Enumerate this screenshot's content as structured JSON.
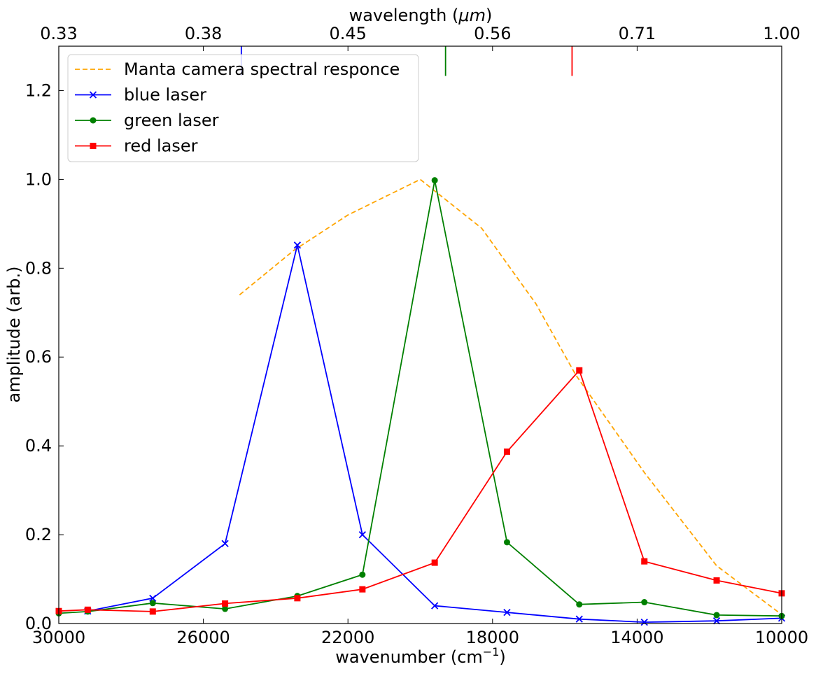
{
  "chart_data": {
    "type": "line",
    "xlabel": "wavenumber (cm",
    "xlabel_sup": "−1",
    "xlabel_end": ")",
    "ylabel": "amplitude (arb.)",
    "top_xlabel": "wavelength (",
    "top_xlabel_unit": "μm",
    "top_xlabel_end": ")",
    "xlim": [
      30000,
      10000
    ],
    "ylim": [
      0,
      1.3
    ],
    "x_ticks": [
      30000,
      26000,
      22000,
      18000,
      14000,
      10000
    ],
    "x_tick_labels": [
      "30000",
      "26000",
      "22000",
      "18000",
      "14000",
      "10000"
    ],
    "y_ticks": [
      0,
      0.2,
      0.4,
      0.6,
      0.8,
      1.0,
      1.2
    ],
    "y_tick_labels": [
      "0.0",
      "0.2",
      "0.4",
      "0.6",
      "0.8",
      "1.0",
      "1.2"
    ],
    "top_ticks_wavenumber": [
      30000,
      26000,
      22000,
      18000,
      14000,
      10000
    ],
    "top_tick_labels": [
      "0.33",
      "0.38",
      "0.45",
      "0.56",
      "0.71",
      "1.00"
    ],
    "grid": false,
    "legend_position": "top-left",
    "laser_markers": [
      {
        "wavenumber": 24950,
        "color": "#0000ff"
      },
      {
        "wavenumber": 19300,
        "color": "#008000"
      },
      {
        "wavenumber": 15800,
        "color": "#ff0000"
      }
    ],
    "series": [
      {
        "name": "Manta camera spectral responce",
        "color": "#ffa500",
        "style": "dashed",
        "marker": "none",
        "x": [
          25000,
          23500,
          22000,
          20000,
          18300,
          16800,
          15700,
          13800,
          11800,
          10000
        ],
        "y": [
          0.74,
          0.84,
          0.92,
          1.0,
          0.89,
          0.72,
          0.56,
          0.34,
          0.13,
          0.02
        ]
      },
      {
        "name": "blue laser",
        "color": "#0000ff",
        "style": "solid",
        "marker": "x",
        "x": [
          29200,
          27400,
          25400,
          23400,
          21600,
          19600,
          17600,
          15600,
          13800,
          11800,
          10000
        ],
        "y": [
          0.028,
          0.057,
          0.18,
          0.852,
          0.2,
          0.04,
          0.025,
          0.01,
          0.003,
          0.006,
          0.012
        ]
      },
      {
        "name": "green laser",
        "color": "#008000",
        "style": "solid",
        "marker": "o",
        "x": [
          30000,
          29200,
          27400,
          25400,
          23400,
          21600,
          19600,
          17600,
          15600,
          13800,
          11800,
          10000
        ],
        "y": [
          0.023,
          0.027,
          0.046,
          0.033,
          0.062,
          0.11,
          0.998,
          0.183,
          0.043,
          0.048,
          0.019,
          0.017
        ]
      },
      {
        "name": "red laser",
        "color": "#ff0000",
        "style": "solid",
        "marker": "s",
        "x": [
          30000,
          29200,
          27400,
          25400,
          23400,
          21600,
          19600,
          17600,
          15600,
          13800,
          11800,
          10000
        ],
        "y": [
          0.028,
          0.031,
          0.027,
          0.045,
          0.057,
          0.077,
          0.137,
          0.387,
          0.57,
          0.14,
          0.097,
          0.068
        ]
      }
    ]
  }
}
